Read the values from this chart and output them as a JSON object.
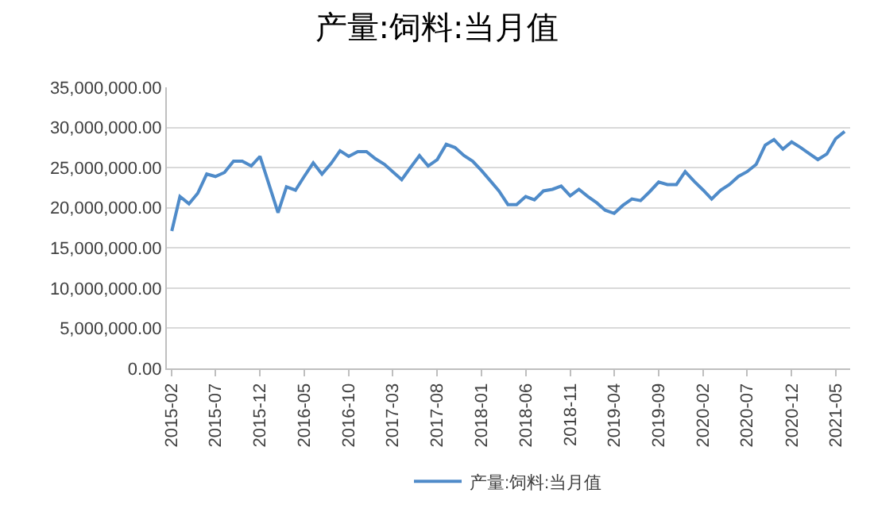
{
  "chart_data": {
    "type": "line",
    "title": "产量:饲料:当月值",
    "x": [
      "2015-02",
      "2015-03",
      "2015-04",
      "2015-05",
      "2015-06",
      "2015-07",
      "2015-08",
      "2015-09",
      "2015-10",
      "2015-11",
      "2015-12",
      "2016-01",
      "2016-02",
      "2016-03",
      "2016-04",
      "2016-05",
      "2016-06",
      "2016-07",
      "2016-08",
      "2016-09",
      "2016-10",
      "2016-11",
      "2016-12",
      "2017-01",
      "2017-02",
      "2017-03",
      "2017-04",
      "2017-05",
      "2017-06",
      "2017-07",
      "2017-08",
      "2017-09",
      "2017-10",
      "2017-11",
      "2017-12",
      "2018-01",
      "2018-02",
      "2018-03",
      "2018-04",
      "2018-05",
      "2018-06",
      "2018-07",
      "2018-08",
      "2018-09",
      "2018-10",
      "2018-11",
      "2018-12",
      "2019-01",
      "2019-02",
      "2019-03",
      "2019-04",
      "2019-05",
      "2019-06",
      "2019-07",
      "2019-08",
      "2019-09",
      "2019-10",
      "2019-11",
      "2019-12",
      "2020-01",
      "2020-02",
      "2020-03",
      "2020-04",
      "2020-05",
      "2020-06",
      "2020-07",
      "2020-08",
      "2020-09",
      "2020-10",
      "2020-11",
      "2020-12",
      "2021-01",
      "2021-02",
      "2021-03",
      "2021-04",
      "2021-05",
      "2021-06"
    ],
    "series": [
      {
        "name": "产量:饲料:当月值",
        "color": "#4f8bc9",
        "values": [
          17100000,
          21400000,
          20500000,
          21800000,
          24200000,
          23900000,
          24400000,
          25800000,
          25800000,
          25200000,
          26400000,
          22900000,
          19400000,
          22600000,
          22200000,
          23900000,
          25600000,
          24200000,
          25500000,
          27100000,
          26400000,
          27000000,
          27000000,
          26100000,
          25400000,
          24500000,
          23500000,
          25000000,
          26500000,
          25200000,
          26000000,
          27900000,
          27500000,
          26500000,
          25800000,
          24600000,
          23300000,
          22100000,
          20400000,
          20400000,
          21400000,
          21000000,
          22100000,
          22300000,
          22700000,
          21500000,
          22300000,
          21400000,
          20600000,
          19700000,
          19300000,
          20300000,
          21100000,
          20900000,
          22000000,
          23200000,
          22900000,
          22900000,
          24500000,
          23300000,
          22200000,
          21100000,
          22200000,
          22900000,
          23900000,
          24500000,
          25400000,
          27800000,
          28500000,
          27300000,
          28200000,
          27500000,
          26700000,
          26000000,
          26700000,
          28600000,
          29500000
        ]
      }
    ],
    "xlim": [
      "2015-01-15",
      "2021-06-20"
    ],
    "xticks": [
      "2015-02",
      "2015-07",
      "2015-12",
      "2016-05",
      "2016-10",
      "2017-03",
      "2017-08",
      "2018-01",
      "2018-06",
      "2018-11",
      "2019-04",
      "2019-09",
      "2020-02",
      "2020-07",
      "2020-12",
      "2021-05"
    ],
    "ylim": [
      0,
      35000000
    ],
    "yticks": [
      {
        "value": 0,
        "label": "0.00"
      },
      {
        "value": 5000000,
        "label": "5,000,000.00"
      },
      {
        "value": 10000000,
        "label": "10,000,000.00"
      },
      {
        "value": 15000000,
        "label": "15,000,000.00"
      },
      {
        "value": 20000000,
        "label": "20,000,000.00"
      },
      {
        "value": 25000000,
        "label": "25,000,000.00"
      },
      {
        "value": 30000000,
        "label": "30,000,000.00"
      },
      {
        "value": 35000000,
        "label": "35,000,000.00"
      }
    ],
    "grid": "y",
    "legend": "bottom",
    "marker": "none",
    "line_style": "solid"
  }
}
